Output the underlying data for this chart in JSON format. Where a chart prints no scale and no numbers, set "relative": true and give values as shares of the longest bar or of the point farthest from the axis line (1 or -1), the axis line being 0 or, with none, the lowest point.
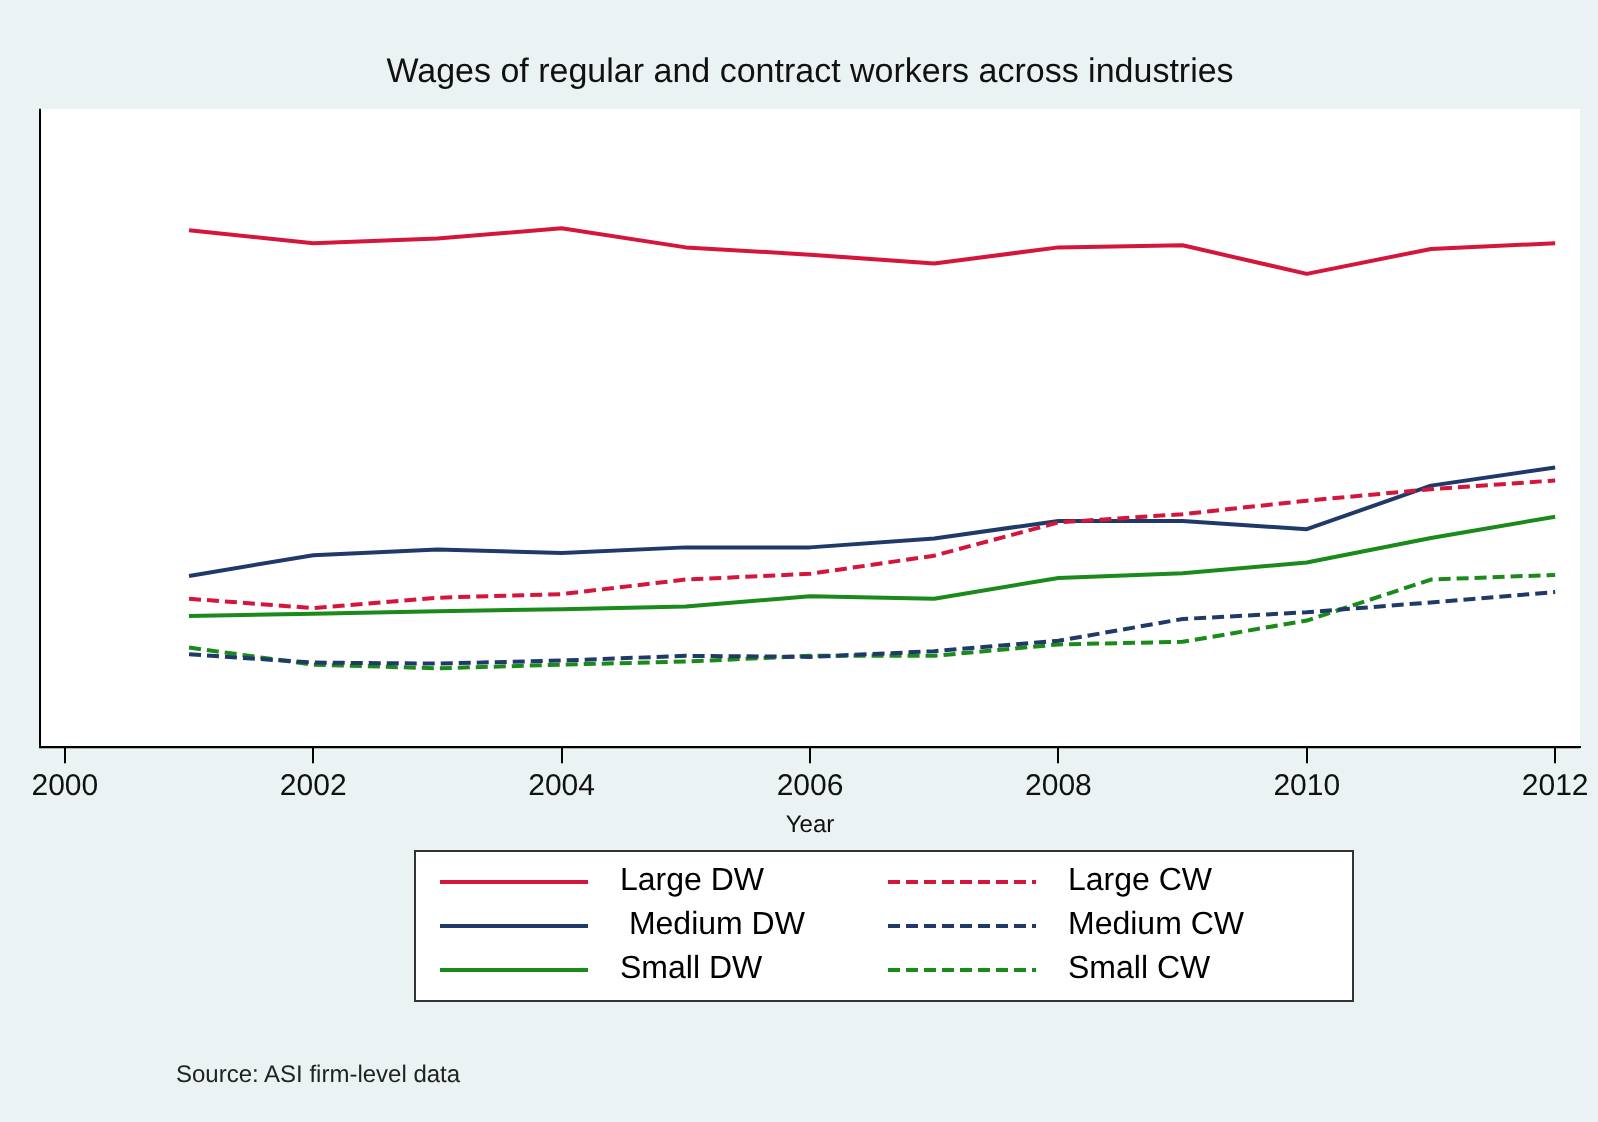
{
  "chart_data": {
    "type": "line",
    "title": "Wages of regular and contract workers across industries",
    "xlabel": "Year",
    "relative": true,
    "x": [
      2001,
      2002,
      2003,
      2004,
      2005,
      2006,
      2007,
      2008,
      2009,
      2010,
      2011,
      2012
    ],
    "xlim": [
      1999.8,
      2012.2
    ],
    "xticks": [
      2000,
      2002,
      2004,
      2006,
      2008,
      2010,
      2012
    ],
    "tick_labels": "x",
    "grid": false,
    "legend": "bottom",
    "marker": "none",
    "series": [
      {
        "name": "Large DW",
        "color": "#d4163c",
        "line_style": "solid",
        "values": [
          0.996,
          0.971,
          0.98,
          1,
          0.963,
          0.949,
          0.932,
          0.963,
          0.967,
          0.912,
          0.96,
          0.971
        ]
      },
      {
        "name": "Large CW",
        "color": "#d4163c",
        "line_style": "dashed",
        "values": [
          0.286,
          0.268,
          0.288,
          0.295,
          0.323,
          0.334,
          0.369,
          0.433,
          0.449,
          0.475,
          0.497,
          0.514
        ]
      },
      {
        "name": " Medium DW",
        "color": "#1f3a68",
        "line_style": "solid",
        "values": [
          0.33,
          0.37,
          0.381,
          0.374,
          0.385,
          0.385,
          0.402,
          0.436,
          0.436,
          0.42,
          0.504,
          0.539
        ]
      },
      {
        "name": "Medium CW",
        "color": "#1f3a68",
        "line_style": "dashed",
        "values": [
          0.179,
          0.163,
          0.161,
          0.167,
          0.176,
          0.174,
          0.185,
          0.205,
          0.247,
          0.26,
          0.279,
          0.299
        ]
      },
      {
        "name": "Small DW",
        "color": "#1a8a1a",
        "line_style": "solid",
        "values": [
          0.253,
          0.257,
          0.262,
          0.266,
          0.271,
          0.291,
          0.286,
          0.326,
          0.335,
          0.356,
          0.403,
          0.444
        ]
      },
      {
        "name": "Small CW",
        "color": "#1a8a1a",
        "line_style": "dashed",
        "values": [
          0.192,
          0.159,
          0.152,
          0.159,
          0.165,
          0.176,
          0.176,
          0.198,
          0.203,
          0.244,
          0.323,
          0.332
        ]
      }
    ],
    "annotations": [
      "Source: ASI firm-level data"
    ]
  }
}
